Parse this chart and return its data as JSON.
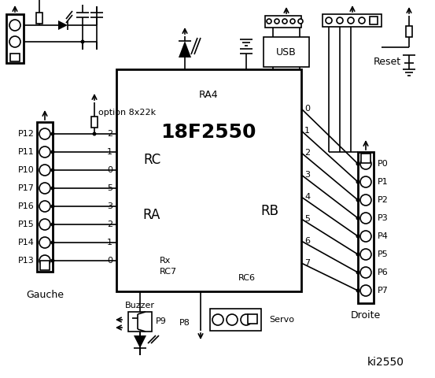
{
  "title": "ki2550",
  "bg_color": "#ffffff",
  "chip_label": "18F2550",
  "ra4_label": "RA4",
  "rc_label": "RC",
  "ra_label": "RA",
  "rb_label": "RB",
  "rc7_label": "RC7",
  "rc6_label": "RC6",
  "rx_label": "Rx",
  "left_pins_label": "Gauche",
  "right_pins_label": "Droite",
  "buzzer_label": "Buzzer",
  "servo_label": "Servo",
  "reset_label": "Reset",
  "usb_label": "USB",
  "option_label": "option 8x22k",
  "p9_label": "P9",
  "p8_label": "P8",
  "left_port_pins": [
    "P12",
    "P11",
    "P10",
    "P17",
    "P16",
    "P15",
    "P14",
    "P13"
  ],
  "right_port_pins": [
    "P0",
    "P1",
    "P2",
    "P3",
    "P4",
    "P5",
    "P6",
    "P7"
  ],
  "rc_nums": [
    "2",
    "1",
    "0"
  ],
  "ra_nums": [
    "5",
    "3",
    "2",
    "1",
    "0"
  ],
  "rb_nums": [
    "0",
    "1",
    "2",
    "3",
    "4",
    "5",
    "6",
    "7"
  ]
}
